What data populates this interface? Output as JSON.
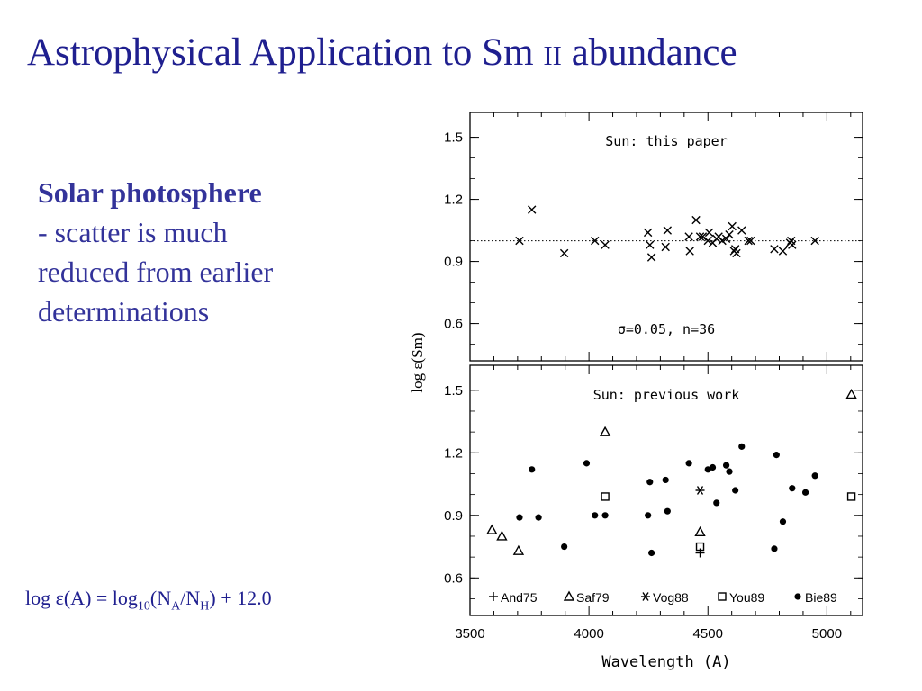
{
  "slide": {
    "title_main": "Astrophysical Application to Sm ",
    "title_ion": "II",
    "title_tail": " abundance",
    "notes_heading": "Solar photosphere",
    "notes_lines": [
      "- scatter is much",
      "reduced from earlier",
      "determinations"
    ],
    "formula": {
      "p1": "log ε(A) = log",
      "sub10": "10",
      "p2": "(N",
      "subA": "A",
      "p3": "/N",
      "subH": "H",
      "p4": ") + 12.0"
    }
  },
  "chart_data": {
    "type": "scatter",
    "xlabel": "Wavelength (A)",
    "ylabel": "log ε(Sm)",
    "xlim": [
      3500,
      5150
    ],
    "x_ticks": [
      3500,
      4000,
      4500,
      5000
    ],
    "x_tick_labels": [
      "3500",
      "4000",
      "4500",
      "5000"
    ],
    "y_ticks": [
      0.6,
      0.9,
      1.2,
      1.5
    ],
    "y_tick_labels": [
      "0.6",
      "0.9",
      "1.2",
      "1.5"
    ],
    "panels": [
      {
        "title": "Sun: this paper",
        "ylim": [
          0.42,
          1.62
        ],
        "annotation": "σ=0.05, n=36",
        "reference_line": 1.0,
        "series": [
          {
            "marker": "x",
            "points": [
              [
                3708,
                1.0
              ],
              [
                3760,
                1.15
              ],
              [
                3896,
                0.94
              ],
              [
                4025,
                1.0
              ],
              [
                4068,
                0.98
              ],
              [
                4248,
                1.04
              ],
              [
                4256,
                0.98
              ],
              [
                4263,
                0.92
              ],
              [
                4322,
                0.97
              ],
              [
                4330,
                1.05
              ],
              [
                4420,
                1.02
              ],
              [
                4424,
                0.95
              ],
              [
                4450,
                1.1
              ],
              [
                4467,
                1.02
              ],
              [
                4478,
                1.02
              ],
              [
                4500,
                1.0
              ],
              [
                4505,
                1.04
              ],
              [
                4520,
                0.99
              ],
              [
                4536,
                1.01
              ],
              [
                4545,
                1.02
              ],
              [
                4560,
                1.0
              ],
              [
                4577,
                1.01
              ],
              [
                4590,
                1.03
              ],
              [
                4602,
                1.07
              ],
              [
                4610,
                0.95
              ],
              [
                4615,
                0.96
              ],
              [
                4620,
                0.94
              ],
              [
                4642,
                1.05
              ],
              [
                4670,
                1.0
              ],
              [
                4680,
                1.0
              ],
              [
                4779,
                0.96
              ],
              [
                4815,
                0.95
              ],
              [
                4845,
                0.99
              ],
              [
                4850,
                1.0
              ],
              [
                4854,
                0.98
              ],
              [
                4950,
                1.0
              ]
            ]
          }
        ]
      },
      {
        "title": "Sun: previous work",
        "ylim": [
          0.42,
          1.62
        ],
        "series": [
          {
            "name": "And75",
            "marker": "plus",
            "points": [
              [
                4467,
                0.72
              ]
            ]
          },
          {
            "name": "Saf79",
            "marker": "triangle",
            "points": [
              [
                3592,
                0.83
              ],
              [
                3634,
                0.8
              ],
              [
                3704,
                0.73
              ],
              [
                4068,
                1.3
              ],
              [
                4467,
                0.82
              ],
              [
                5103,
                1.48
              ]
            ]
          },
          {
            "name": "Vog88",
            "marker": "asterisk",
            "points": [
              [
                4467,
                1.02
              ]
            ]
          },
          {
            "name": "You89",
            "marker": "square",
            "points": [
              [
                4068,
                0.99
              ],
              [
                4467,
                0.75
              ],
              [
                5103,
                0.99
              ]
            ]
          },
          {
            "name": "Bie89",
            "marker": "dot",
            "points": [
              [
                3708,
                0.89
              ],
              [
                3760,
                1.12
              ],
              [
                3788,
                0.89
              ],
              [
                3896,
                0.75
              ],
              [
                3990,
                1.15
              ],
              [
                4025,
                0.9
              ],
              [
                4068,
                0.9
              ],
              [
                4248,
                0.9
              ],
              [
                4256,
                1.06
              ],
              [
                4263,
                0.72
              ],
              [
                4322,
                1.07
              ],
              [
                4330,
                0.92
              ],
              [
                4420,
                1.15
              ],
              [
                4500,
                1.12
              ],
              [
                4520,
                1.13
              ],
              [
                4536,
                0.96
              ],
              [
                4577,
                1.14
              ],
              [
                4590,
                1.11
              ],
              [
                4615,
                1.02
              ],
              [
                4642,
                1.23
              ],
              [
                4779,
                0.74
              ],
              [
                4788,
                1.19
              ],
              [
                4815,
                0.87
              ],
              [
                4854,
                1.03
              ],
              [
                4910,
                1.01
              ],
              [
                4950,
                1.09
              ]
            ]
          }
        ]
      }
    ],
    "legend": [
      "And75",
      "Saf79",
      "Vog88",
      "You89",
      "Bie89"
    ]
  }
}
